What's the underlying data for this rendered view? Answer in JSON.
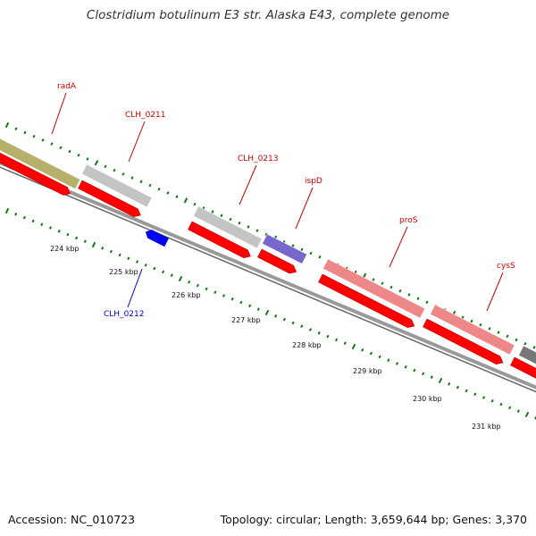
{
  "title": "Clostridium botulinum E3 str. Alaska E43, complete genome",
  "footer": {
    "accession": "Accession: NC_010723",
    "stats": "Topology: circular; Length: 3,659,644 bp; Genes: 3,370"
  },
  "colors": {
    "gene_name_forward": "#cc0000",
    "gene_name_reverse": "#0000cc",
    "cds_forward": "#ff0000",
    "cds_reverse": "#0000ff",
    "tick": "#117711",
    "backbone": "#888888"
  },
  "ticks": [
    {
      "label": "224 kbp"
    },
    {
      "label": "225 kbp"
    },
    {
      "label": "226 kbp"
    },
    {
      "label": "227 kbp"
    },
    {
      "label": "228 kbp"
    },
    {
      "label": "229 kbp"
    },
    {
      "label": "230 kbp"
    },
    {
      "label": "231 kbp"
    }
  ],
  "genes": [
    {
      "name": "radA",
      "strand": "forward",
      "function_color": "#b5b06a"
    },
    {
      "name": "CLH_0211",
      "strand": "forward",
      "function_color": "#c4c4c4"
    },
    {
      "name": "CLH_0212",
      "strand": "reverse",
      "function_color": ""
    },
    {
      "name": "CLH_0213",
      "strand": "forward",
      "function_color": "#c4c4c4"
    },
    {
      "name": "ispD",
      "strand": "forward",
      "function_color": "#7766cc"
    },
    {
      "name": "proS",
      "strand": "forward",
      "function_color": "#ee8888"
    },
    {
      "name": "cysS",
      "strand": "forward",
      "function_color": "#ee8888"
    },
    {
      "name": "",
      "strand": "forward",
      "function_color": "#777777"
    }
  ]
}
